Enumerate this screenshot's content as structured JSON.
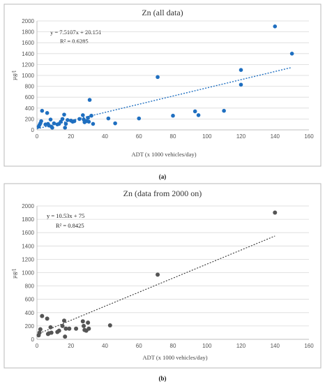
{
  "chart_data": [
    {
      "type": "scatter",
      "title": "Zn (all data)",
      "xlabel": "ADT (x 1000 vehicles/day)",
      "ylabel": "µg/l",
      "xlim": [
        0,
        160
      ],
      "ylim": [
        0,
        2000
      ],
      "xticks": [
        "0",
        "20",
        "40",
        "60",
        "80",
        "100",
        "120",
        "140",
        "160"
      ],
      "yticks": [
        "0",
        "200",
        "400",
        "600",
        "800",
        "1000",
        "1200",
        "1400",
        "1600",
        "1800",
        "2000"
      ],
      "grid": true,
      "point_color": "#1f6fc0",
      "trendline_color": "#1f6fc0",
      "trendline": {
        "slope": 7.5107,
        "intercept": 20.151,
        "x_range": [
          0,
          150
        ]
      },
      "equation": "y = 7.5107x + 20.151",
      "r2": "R² = 0.6285",
      "panel_label": "(a)",
      "points": [
        [
          1,
          60
        ],
        [
          1.5,
          90
        ],
        [
          2,
          120
        ],
        [
          2.5,
          160
        ],
        [
          3,
          350
        ],
        [
          5,
          100
        ],
        [
          6,
          310
        ],
        [
          6.5,
          110
        ],
        [
          7,
          80
        ],
        [
          8,
          190
        ],
        [
          8.5,
          60
        ],
        [
          9,
          40
        ],
        [
          10,
          120
        ],
        [
          12,
          100
        ],
        [
          13,
          110
        ],
        [
          14,
          150
        ],
        [
          15,
          200
        ],
        [
          16,
          280
        ],
        [
          16.5,
          40
        ],
        [
          17,
          110
        ],
        [
          18,
          180
        ],
        [
          20,
          170
        ],
        [
          21,
          150
        ],
        [
          22,
          160
        ],
        [
          25,
          200
        ],
        [
          27,
          270
        ],
        [
          27.5,
          190
        ],
        [
          28,
          140
        ],
        [
          29,
          160
        ],
        [
          30,
          220
        ],
        [
          30.5,
          150
        ],
        [
          31,
          550
        ],
        [
          32,
          260
        ],
        [
          33,
          110
        ],
        [
          42,
          210
        ],
        [
          46,
          120
        ],
        [
          60,
          210
        ],
        [
          71,
          970
        ],
        [
          80,
          260
        ],
        [
          93,
          340
        ],
        [
          95,
          270
        ],
        [
          110,
          350
        ],
        [
          120,
          1100
        ],
        [
          120,
          830
        ],
        [
          140,
          1900
        ],
        [
          150,
          1400
        ]
      ]
    },
    {
      "type": "scatter",
      "title": "Zn (data from 2000 on)",
      "xlabel": "ADT (x 1000 vehicles/day)",
      "ylabel": "µg/l",
      "xlim": [
        0,
        160
      ],
      "ylim": [
        0,
        2000
      ],
      "xticks": [
        "0",
        "20",
        "40",
        "60",
        "80",
        "100",
        "120",
        "140",
        "160"
      ],
      "yticks": [
        "0",
        "200",
        "400",
        "600",
        "800",
        "1000",
        "1200",
        "1400",
        "1600",
        "1800",
        "2000"
      ],
      "grid": true,
      "point_color": "#555555",
      "trendline_color": "#333333",
      "trendline": {
        "slope": 10.53,
        "intercept": 75,
        "x_range": [
          0,
          140
        ]
      },
      "equation": "y = 10.53x + 75",
      "r2": "R² = 0.8425",
      "panel_label": "(b)",
      "points": [
        [
          1,
          60
        ],
        [
          1.5,
          100
        ],
        [
          2,
          150
        ],
        [
          3,
          350
        ],
        [
          6,
          310
        ],
        [
          6.5,
          80
        ],
        [
          7,
          90
        ],
        [
          8,
          180
        ],
        [
          8.5,
          100
        ],
        [
          12,
          110
        ],
        [
          13,
          130
        ],
        [
          15,
          200
        ],
        [
          16,
          280
        ],
        [
          16.5,
          40
        ],
        [
          17,
          160
        ],
        [
          19,
          160
        ],
        [
          23,
          160
        ],
        [
          27,
          270
        ],
        [
          27.5,
          200
        ],
        [
          28,
          140
        ],
        [
          29,
          130
        ],
        [
          30,
          250
        ],
        [
          30.5,
          160
        ],
        [
          43,
          210
        ],
        [
          71,
          970
        ],
        [
          140,
          1900
        ]
      ]
    }
  ]
}
